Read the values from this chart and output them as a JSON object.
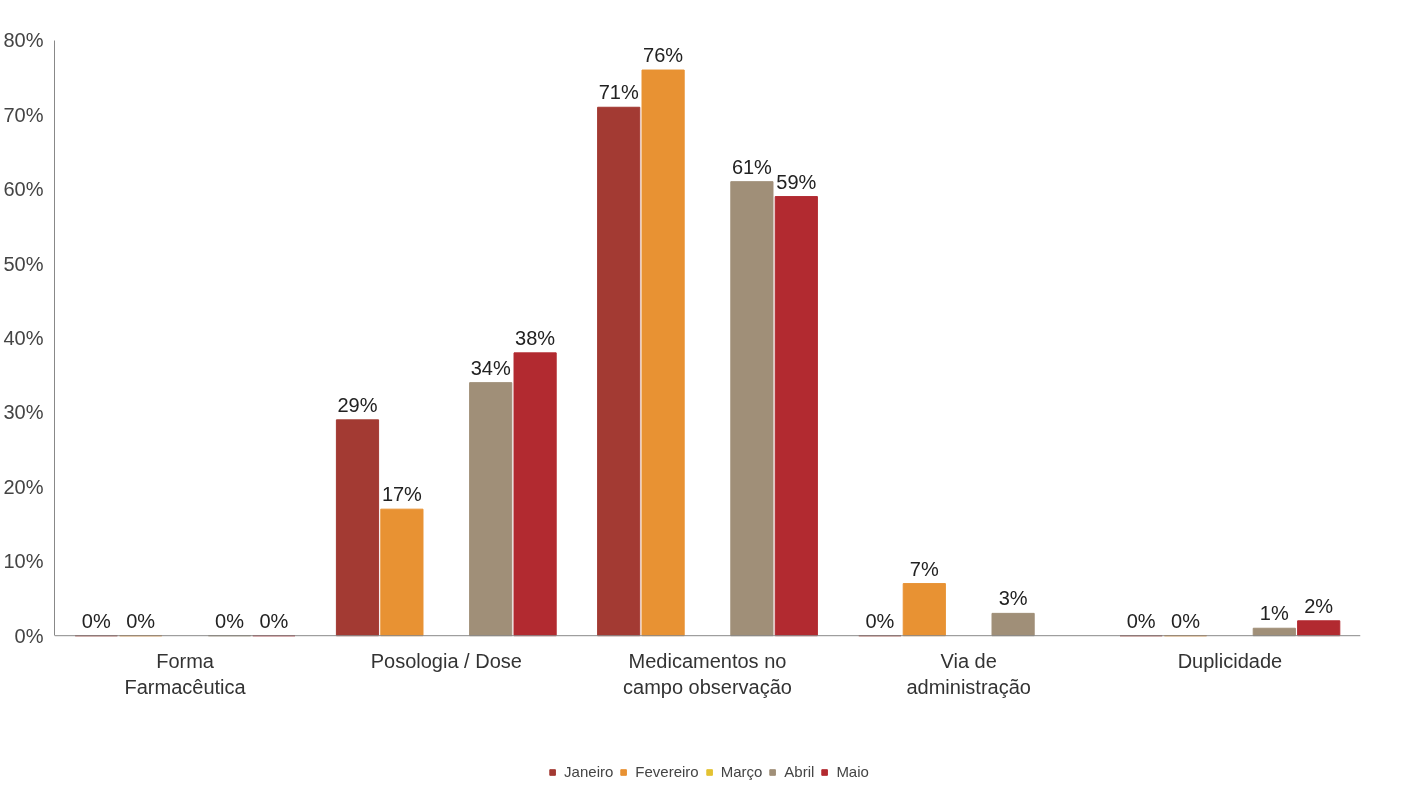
{
  "chart_data": {
    "type": "bar",
    "categories": [
      "Forma\nFarmacêutica",
      "Posologia / Dose",
      "Medicamentos no\ncampo observação",
      "Via de\nadministração",
      "Duplicidade"
    ],
    "series": [
      {
        "name": "Janeiro",
        "color": "#a33a33",
        "values": [
          0,
          29,
          71,
          0,
          0
        ],
        "value_labels": [
          "0%",
          "29%",
          "71%",
          "0%",
          "0%"
        ]
      },
      {
        "name": "Fevereiro",
        "color": "#e89233",
        "values": [
          0,
          17,
          76,
          7,
          0
        ],
        "value_labels": [
          "0%",
          "17%",
          "76%",
          "7%",
          "0%"
        ]
      },
      {
        "name": "Março",
        "color": "#e3c232",
        "values": [
          null,
          null,
          null,
          null,
          null
        ],
        "value_labels": [
          null,
          null,
          null,
          null,
          null
        ]
      },
      {
        "name": "Abril",
        "color": "#a08f78",
        "values": [
          0,
          34,
          61,
          3,
          1
        ],
        "value_labels": [
          "0%",
          "34%",
          "61%",
          "3%",
          "1%"
        ]
      },
      {
        "name": "Maio",
        "color": "#b22a30",
        "values": [
          0,
          38,
          59,
          null,
          2
        ],
        "value_labels": [
          "0%",
          "38%",
          "59%",
          null,
          "2%"
        ]
      }
    ],
    "ylim": [
      0,
      80
    ],
    "yticks": [
      {
        "value": 0,
        "label": "0%"
      },
      {
        "value": 10,
        "label": "10%"
      },
      {
        "value": 20,
        "label": "20%"
      },
      {
        "value": 30,
        "label": "30%"
      },
      {
        "value": 40,
        "label": "40%"
      },
      {
        "value": 50,
        "label": "50%"
      },
      {
        "value": 60,
        "label": "60%"
      },
      {
        "value": 70,
        "label": "70%"
      },
      {
        "value": 80,
        "label": "80%"
      }
    ],
    "grid": false,
    "legend": "bottom"
  }
}
